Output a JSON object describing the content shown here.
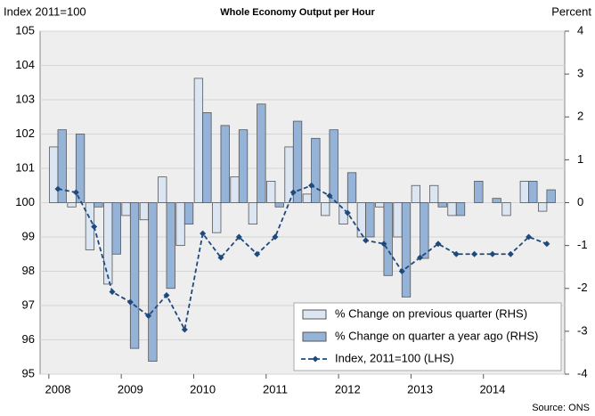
{
  "chart_data": {
    "type": "bar_line",
    "title": "Whole Economy Output per Hour",
    "y_axis_label": "Index 2011=100",
    "y2_axis_label": "Percent",
    "source": "Source: ONS",
    "categories": [
      "2008",
      null,
      null,
      null,
      "2009",
      null,
      null,
      null,
      "2010",
      null,
      null,
      null,
      "2011",
      null,
      null,
      null,
      "2012",
      null,
      null,
      null,
      "2013",
      null,
      null,
      null,
      "2014",
      null,
      null,
      null
    ],
    "ylim": [
      95,
      105
    ],
    "yticks": [
      95,
      96,
      97,
      98,
      99,
      100,
      101,
      102,
      103,
      104,
      105
    ],
    "y2lim": [
      -4,
      4
    ],
    "y2ticks": [
      -4,
      -3,
      -2,
      -1,
      0,
      1,
      2,
      3,
      4
    ],
    "grid": true,
    "legend": "lower right",
    "series": [
      {
        "name": "% Change on previous quarter (RHS)",
        "type": "bar",
        "axis": "y2",
        "color": "#dce6f2",
        "values": [
          1.3,
          -0.1,
          -1.1,
          -1.9,
          -0.3,
          -0.4,
          0.6,
          -1.0,
          2.9,
          -0.7,
          0.6,
          -0.5,
          0.5,
          1.3,
          0.2,
          -0.3,
          -0.5,
          -0.8,
          -0.1,
          -0.8,
          0.4,
          0.4,
          -0.3,
          0,
          0,
          -0.3,
          0.5,
          -0.2
        ]
      },
      {
        "name": "% Change on quarter a year ago (RHS)",
        "type": "bar",
        "axis": "y2",
        "color": "#95b3d7",
        "values": [
          1.7,
          1.6,
          -0.1,
          -1.2,
          -3.4,
          -3.7,
          -2.0,
          -0.5,
          2.1,
          1.8,
          1.7,
          2.3,
          -0.1,
          1.9,
          1.5,
          1.7,
          0.7,
          -0.8,
          -1.7,
          -2.2,
          -1.3,
          -0.1,
          -0.3,
          0.5,
          0.1,
          0,
          0.5,
          0.3
        ]
      },
      {
        "name": "Index, 2011=100 (LHS)",
        "type": "line",
        "axis": "y",
        "color": "#1f497d",
        "values": [
          100.4,
          100.3,
          99.3,
          97.4,
          97.1,
          96.7,
          97.3,
          96.3,
          99.1,
          98.4,
          99.0,
          98.5,
          99.0,
          100.3,
          100.5,
          100.2,
          99.7,
          98.9,
          98.8,
          98.0,
          98.4,
          98.8,
          98.5,
          98.5,
          98.5,
          98.5,
          99.0,
          98.8
        ]
      }
    ]
  }
}
